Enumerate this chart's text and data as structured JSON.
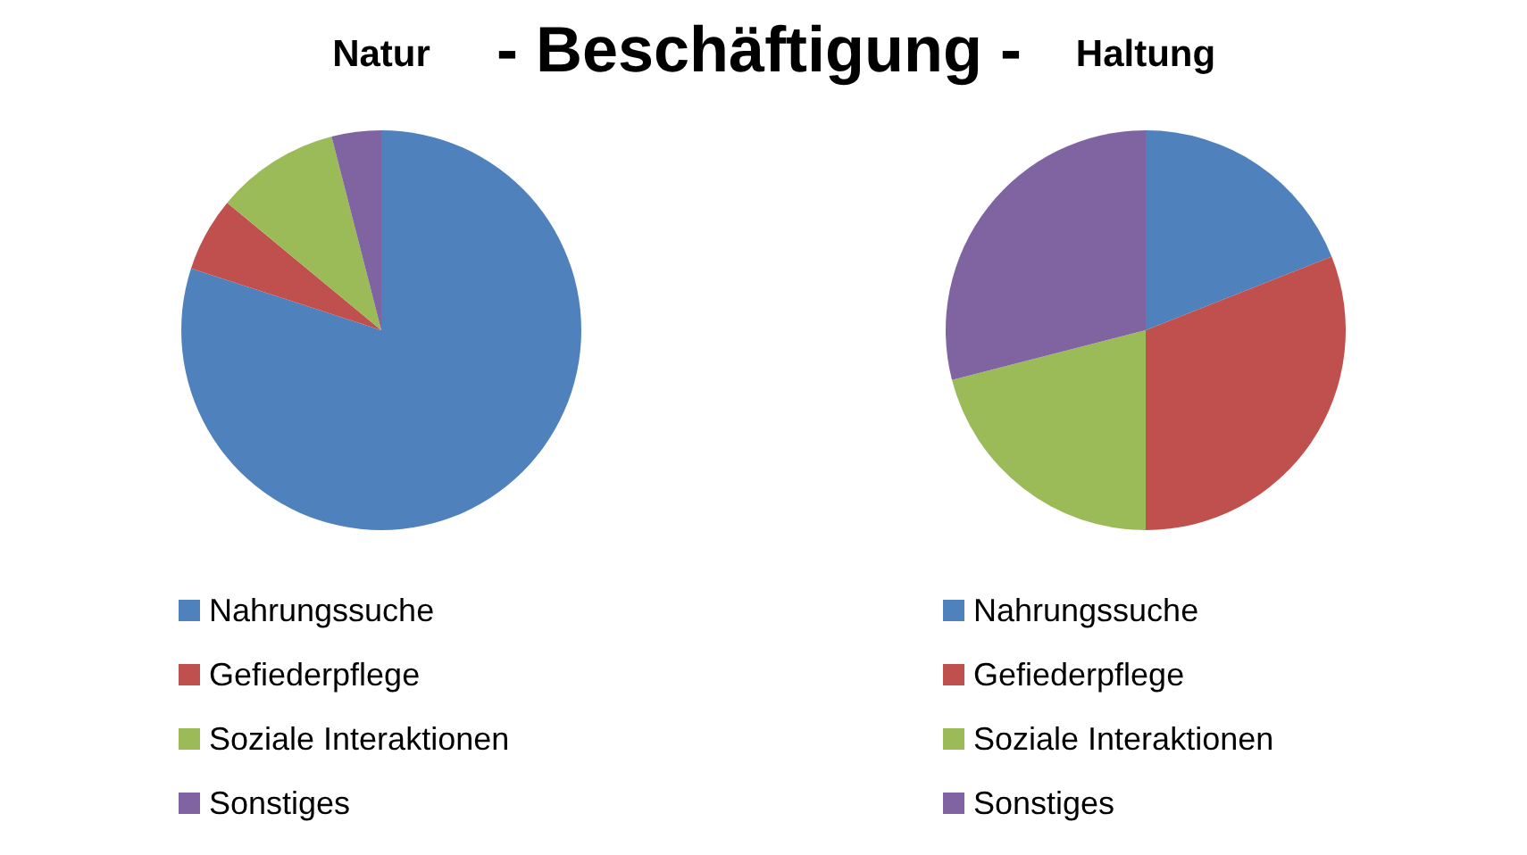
{
  "chart_data": [
    {
      "type": "pie",
      "title": "Natur",
      "annotations": [
        "- Beschäftigung -"
      ],
      "categories": [
        "Nahrungssuche",
        "Gefiederpflege",
        "Soziale Interaktionen",
        "Sonstiges"
      ],
      "values": [
        80,
        6,
        10,
        4
      ],
      "colors": [
        "#4f81bd",
        "#c0504d",
        "#9bbb59",
        "#8064a2"
      ],
      "legend": "bottom"
    },
    {
      "type": "pie",
      "title": "Haltung",
      "categories": [
        "Nahrungssuche",
        "Gefiederpflege",
        "Soziale Interaktionen",
        "Sonstiges"
      ],
      "values": [
        19,
        31,
        21,
        29
      ],
      "colors": [
        "#4f81bd",
        "#c0504d",
        "#9bbb59",
        "#8064a2"
      ],
      "legend": "bottom"
    }
  ]
}
